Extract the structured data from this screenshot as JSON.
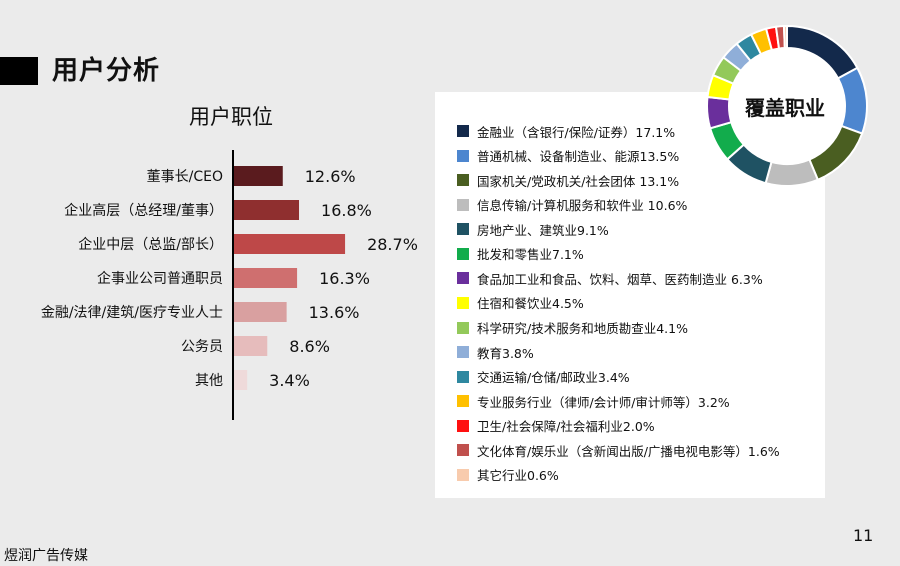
{
  "header": {
    "title": "用户分析"
  },
  "chart_data": [
    {
      "type": "bar",
      "orientation": "horizontal",
      "title": "用户职位",
      "categories": [
        "董事长/CEO",
        "企业高层（总经理/董事）",
        "企业中层（总监/部长）",
        "企事业公司普通职员",
        "金融/法律/建筑/医疗专业人士",
        "公务员",
        "其他"
      ],
      "values": [
        12.6,
        16.8,
        28.7,
        16.3,
        13.6,
        8.6,
        3.4
      ],
      "value_labels": [
        "12.6%",
        "16.8%",
        "28.7%",
        "16.3%",
        "13.6%",
        "8.6%",
        "3.4%"
      ],
      "colors": [
        "#5a1b1e",
        "#8f2f2f",
        "#be4848",
        "#cf6f6f",
        "#d9a0a0",
        "#e6bcbc",
        "#efdada"
      ]
    },
    {
      "type": "pie",
      "title": "覆盖职业",
      "legend_position": "left",
      "slices": [
        {
          "label": "金融业（含银行/保险/证券）17.1%",
          "value": 17.1,
          "color": "#13294b"
        },
        {
          "label": "普通机械、设备制造业、能源13.5%",
          "value": 13.5,
          "color": "#4d86cf"
        },
        {
          "label": "国家机关/党政机关/社会团体 13.1%",
          "value": 13.1,
          "color": "#4a5e21"
        },
        {
          "label": "信息传输/计算机服务和软件业 10.6%",
          "value": 10.6,
          "color": "#bdbdbd"
        },
        {
          "label": "房地产业、建筑业9.1%",
          "value": 9.1,
          "color": "#1f5263"
        },
        {
          "label": "批发和零售业7.1%",
          "value": 7.1,
          "color": "#12ac4c"
        },
        {
          "label": "食品加工业和食品、饮料、烟草、医药制造业 6.3%",
          "value": 6.3,
          "color": "#6a2f9c"
        },
        {
          "label": "住宿和餐饮业4.5%",
          "value": 4.5,
          "color": "#ffff00"
        },
        {
          "label": "科学研究/技术服务和地质勘查业4.1%",
          "value": 4.1,
          "color": "#93c95a"
        },
        {
          "label": "教育3.8%",
          "value": 3.8,
          "color": "#8faed8"
        },
        {
          "label": "交通运输/仓储/邮政业3.4%",
          "value": 3.4,
          "color": "#2e88a0"
        },
        {
          "label": "专业服务行业（律师/会计师/审计师等）3.2%",
          "value": 3.2,
          "color": "#ffc000"
        },
        {
          "label": "卫生/社会保障/社会福利业2.0%",
          "value": 2.0,
          "color": "#ff1010"
        },
        {
          "label": "文化体育/娱乐业（含新闻出版/广播电视电影等）1.6%",
          "value": 1.6,
          "color": "#c0504d"
        },
        {
          "label": "其它行业0.6%",
          "value": 0.6,
          "color": "#f8cbad"
        }
      ]
    }
  ],
  "page_number": "11",
  "footer": {
    "text": "煜润广告传媒"
  }
}
